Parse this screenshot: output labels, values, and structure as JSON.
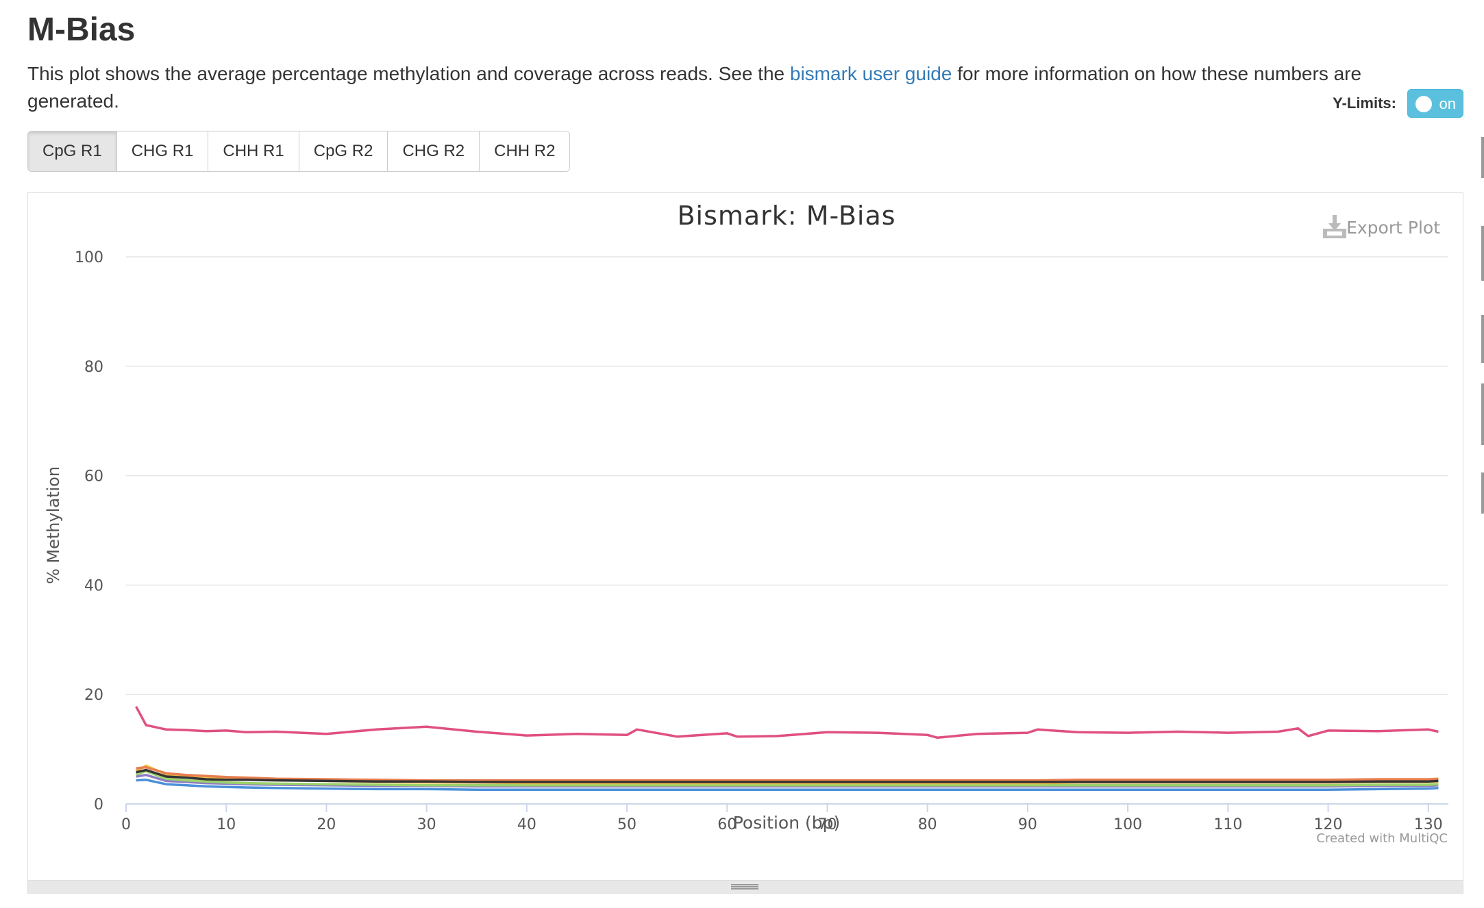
{
  "page": {
    "title": "M-Bias",
    "description_before": "This plot shows the average percentage methylation and coverage across reads. See the ",
    "link_text": "bismark user guide",
    "description_after": " for more information on how these numbers are generated.",
    "ylimits_label": "Y-Limits:",
    "toggle_text": "on"
  },
  "tabs": [
    {
      "label": "CpG R1",
      "active": true
    },
    {
      "label": "CHG R1",
      "active": false
    },
    {
      "label": "CHH R1",
      "active": false
    },
    {
      "label": "CpG R2",
      "active": false
    },
    {
      "label": "CHG R2",
      "active": false
    },
    {
      "label": "CHH R2",
      "active": false
    }
  ],
  "plot": {
    "export_label": "Export Plot",
    "credit": "Created with MultiQC"
  },
  "chart_data": {
    "type": "line",
    "title": "Bismark: M-Bias",
    "xlabel": "Position (bp)",
    "ylabel": "% Methylation",
    "xlim": [
      0,
      132
    ],
    "ylim": [
      0,
      100
    ],
    "xticks": [
      0,
      10,
      20,
      30,
      40,
      50,
      60,
      70,
      80,
      90,
      100,
      110,
      120,
      130
    ],
    "yticks": [
      0,
      20,
      40,
      60,
      80,
      100
    ],
    "grid": true,
    "legend": "none",
    "x": [
      1,
      2,
      4,
      6,
      8,
      10,
      12,
      15,
      20,
      25,
      30,
      35,
      40,
      45,
      50,
      51,
      55,
      60,
      61,
      65,
      70,
      75,
      80,
      81,
      85,
      90,
      91,
      95,
      100,
      105,
      110,
      115,
      117,
      118,
      120,
      125,
      130,
      131
    ],
    "series": [
      {
        "color": "#e0507f",
        "values": [
          17.8,
          14.4,
          13.6,
          13.5,
          13.3,
          13.4,
          13.1,
          13.2,
          12.8,
          13.6,
          14.1,
          13.2,
          12.5,
          12.8,
          12.6,
          13.6,
          12.3,
          12.9,
          12.3,
          12.4,
          13.1,
          13.0,
          12.6,
          12.1,
          12.8,
          13.0,
          13.6,
          13.1,
          13.0,
          13.2,
          13.0,
          13.2,
          13.8,
          12.4,
          13.4,
          13.3,
          13.6,
          13.2
        ]
      },
      {
        "color": "#333333",
        "values": [
          5.8,
          6.2,
          5.0,
          4.8,
          4.5,
          4.4,
          4.4,
          4.3,
          4.2,
          4.1,
          4.1,
          4.0,
          4.0,
          4.0,
          4.0,
          4.0,
          4.0,
          4.0,
          4.0,
          4.0,
          4.0,
          4.0,
          4.0,
          4.0,
          4.0,
          4.0,
          4.0,
          4.0,
          4.0,
          4.0,
          4.0,
          4.0,
          4.0,
          4.0,
          4.0,
          4.1,
          4.1,
          4.2
        ]
      },
      {
        "color": "#e87e4f",
        "values": [
          6.5,
          6.7,
          5.6,
          5.3,
          5.1,
          4.9,
          4.8,
          4.6,
          4.5,
          4.4,
          4.3,
          4.3,
          4.3,
          4.3,
          4.3,
          4.3,
          4.3,
          4.3,
          4.3,
          4.3,
          4.3,
          4.3,
          4.3,
          4.3,
          4.3,
          4.3,
          4.3,
          4.4,
          4.4,
          4.4,
          4.4,
          4.4,
          4.4,
          4.4,
          4.4,
          4.5,
          4.5,
          4.6
        ]
      },
      {
        "color": "#f5c446",
        "values": [
          6.0,
          7.0,
          5.4,
          5.0,
          4.8,
          4.6,
          4.5,
          4.4,
          4.2,
          4.0,
          3.9,
          3.9,
          3.8,
          3.8,
          3.8,
          3.8,
          3.8,
          3.8,
          3.8,
          3.8,
          3.8,
          3.8,
          3.8,
          3.8,
          3.8,
          3.8,
          3.8,
          3.9,
          3.9,
          3.9,
          3.9,
          3.9,
          3.9,
          3.9,
          3.9,
          4.0,
          4.0,
          4.1
        ]
      },
      {
        "color": "#9bd16a",
        "values": [
          5.4,
          6.0,
          4.6,
          4.3,
          4.1,
          3.9,
          3.8,
          3.7,
          3.6,
          3.5,
          3.4,
          3.4,
          3.4,
          3.4,
          3.4,
          3.4,
          3.4,
          3.4,
          3.4,
          3.4,
          3.4,
          3.4,
          3.4,
          3.4,
          3.4,
          3.4,
          3.4,
          3.4,
          3.4,
          3.4,
          3.4,
          3.4,
          3.4,
          3.4,
          3.4,
          3.5,
          3.5,
          3.6
        ]
      },
      {
        "color": "#8e7cc3",
        "values": [
          5.0,
          5.3,
          4.2,
          4.0,
          3.8,
          3.7,
          3.6,
          3.5,
          3.4,
          3.3,
          3.3,
          3.2,
          3.2,
          3.2,
          3.2,
          3.2,
          3.2,
          3.2,
          3.2,
          3.2,
          3.2,
          3.2,
          3.2,
          3.2,
          3.2,
          3.2,
          3.2,
          3.2,
          3.2,
          3.2,
          3.2,
          3.2,
          3.2,
          3.2,
          3.2,
          3.3,
          3.3,
          3.4
        ]
      },
      {
        "color": "#4a90d9",
        "values": [
          4.3,
          4.4,
          3.6,
          3.4,
          3.2,
          3.1,
          3.0,
          2.9,
          2.8,
          2.7,
          2.7,
          2.6,
          2.6,
          2.6,
          2.6,
          2.6,
          2.6,
          2.6,
          2.6,
          2.6,
          2.6,
          2.6,
          2.6,
          2.6,
          2.6,
          2.6,
          2.6,
          2.6,
          2.6,
          2.6,
          2.6,
          2.6,
          2.6,
          2.6,
          2.6,
          2.7,
          2.8,
          2.9
        ]
      }
    ]
  }
}
